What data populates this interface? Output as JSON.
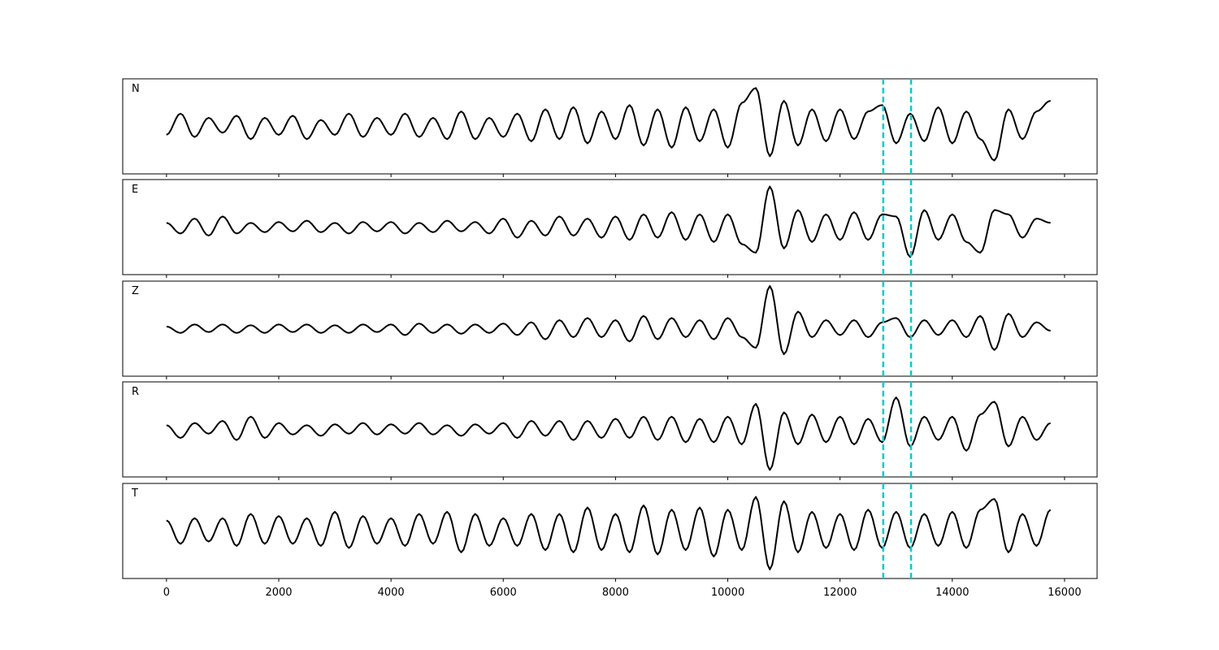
{
  "chart_data": {
    "type": "line",
    "title": "",
    "xlabel": "",
    "ylabel": "",
    "xlim": [
      -780,
      16580
    ],
    "x_ticks": [
      0,
      2000,
      4000,
      6000,
      8000,
      10000,
      12000,
      14000,
      16000
    ],
    "x_tick_labels": [
      "0",
      "2000",
      "4000",
      "6000",
      "8000",
      "10000",
      "12000",
      "14000",
      "16000"
    ],
    "grid": false,
    "shared_x": true,
    "line_color": "#000000",
    "marker_color": "#00cccc",
    "markers": [
      12770,
      13265
    ],
    "x_start": 0,
    "sample_interval": 250,
    "ylim": [
      -1,
      1
    ],
    "panels": [
      {
        "label": "N",
        "values": [
          -0.2,
          0.3,
          -0.25,
          0.2,
          -0.15,
          0.25,
          -0.3,
          0.2,
          -0.2,
          0.25,
          -0.3,
          0.15,
          -0.2,
          0.3,
          -0.25,
          0.2,
          -0.2,
          0.3,
          -0.25,
          0.2,
          -0.3,
          0.35,
          -0.3,
          0.2,
          -0.25,
          0.3,
          -0.35,
          0.4,
          -0.3,
          0.45,
          -0.4,
          0.35,
          -0.3,
          0.5,
          -0.45,
          0.4,
          -0.5,
          0.45,
          -0.35,
          0.4,
          -0.5,
          0.55,
          0.9,
          -0.7,
          0.6,
          -0.45,
          0.4,
          -0.35,
          0.4,
          -0.3,
          0.35,
          0.5,
          -0.4,
          0.3,
          -0.35,
          0.45,
          -0.4,
          0.35,
          -0.3,
          -0.8,
          0.4,
          -0.3,
          0.35,
          0.6
        ]
      },
      {
        "label": "E",
        "values": [
          0.1,
          -0.15,
          0.2,
          -0.2,
          0.25,
          -0.15,
          0.1,
          -0.12,
          0.12,
          -0.1,
          0.15,
          -0.12,
          0.1,
          -0.15,
          0.12,
          -0.1,
          0.12,
          -0.15,
          0.1,
          -0.12,
          0.15,
          -0.1,
          0.12,
          -0.15,
          0.2,
          -0.25,
          0.15,
          -0.2,
          0.25,
          -0.2,
          0.2,
          -0.25,
          0.25,
          -0.3,
          0.3,
          -0.25,
          0.35,
          -0.3,
          0.3,
          -0.35,
          0.3,
          -0.4,
          -0.6,
          0.95,
          -0.5,
          0.4,
          -0.35,
          0.3,
          -0.3,
          0.35,
          -0.3,
          0.3,
          0.25,
          -0.7,
          0.4,
          -0.3,
          0.3,
          -0.35,
          -0.6,
          0.4,
          0.3,
          -0.25,
          0.2,
          0.1
        ]
      },
      {
        "label": "Z",
        "values": [
          0.05,
          -0.1,
          0.1,
          -0.08,
          0.1,
          -0.1,
          0.08,
          -0.1,
          0.1,
          -0.08,
          0.1,
          -0.1,
          0.08,
          -0.1,
          0.1,
          -0.08,
          0.1,
          -0.15,
          0.12,
          -0.1,
          0.1,
          -0.12,
          0.1,
          -0.1,
          0.12,
          -0.15,
          0.15,
          -0.25,
          0.2,
          -0.2,
          0.25,
          -0.2,
          0.2,
          -0.3,
          0.3,
          -0.25,
          0.25,
          -0.2,
          0.2,
          -0.25,
          0.25,
          -0.2,
          -0.45,
          1.0,
          -0.6,
          0.4,
          -0.2,
          0.2,
          -0.15,
          0.2,
          -0.2,
          0.15,
          0.25,
          -0.2,
          0.2,
          -0.15,
          0.2,
          -0.2,
          0.3,
          -0.5,
          0.35,
          -0.2,
          0.15,
          -0.05
        ]
      },
      {
        "label": "R",
        "values": [
          0.1,
          -0.2,
          0.15,
          -0.1,
          0.2,
          -0.25,
          0.3,
          -0.2,
          0.15,
          -0.12,
          0.1,
          -0.15,
          0.12,
          -0.1,
          0.15,
          -0.12,
          0.12,
          -0.1,
          0.15,
          -0.12,
          0.1,
          -0.15,
          0.12,
          -0.1,
          0.15,
          -0.2,
          0.2,
          -0.15,
          0.2,
          -0.25,
          0.2,
          -0.2,
          0.25,
          -0.2,
          0.3,
          -0.25,
          0.3,
          -0.3,
          0.25,
          -0.3,
          0.3,
          -0.35,
          0.6,
          -0.95,
          0.4,
          -0.35,
          0.35,
          -0.3,
          0.3,
          -0.35,
          0.25,
          -0.3,
          0.75,
          -0.4,
          0.3,
          -0.25,
          0.3,
          -0.5,
          0.35,
          0.65,
          -0.4,
          0.3,
          -0.25,
          0.15
        ]
      },
      {
        "label": "T",
        "values": [
          0.25,
          -0.3,
          0.3,
          -0.25,
          0.3,
          -0.35,
          0.4,
          -0.3,
          0.35,
          -0.3,
          0.3,
          -0.35,
          0.45,
          -0.4,
          0.35,
          -0.3,
          0.3,
          -0.35,
          0.4,
          -0.3,
          0.45,
          -0.5,
          0.4,
          -0.35,
          0.3,
          -0.35,
          0.4,
          -0.45,
          0.4,
          -0.5,
          0.55,
          -0.45,
          0.4,
          -0.5,
          0.6,
          -0.55,
          0.5,
          -0.45,
          0.55,
          -0.6,
          0.5,
          -0.45,
          0.8,
          -0.9,
          0.7,
          -0.5,
          0.45,
          -0.4,
          0.4,
          -0.45,
          0.5,
          -0.4,
          0.45,
          -0.4,
          0.4,
          -0.35,
          0.45,
          -0.4,
          0.5,
          0.75,
          -0.5,
          0.4,
          -0.35,
          0.5
        ]
      }
    ]
  }
}
